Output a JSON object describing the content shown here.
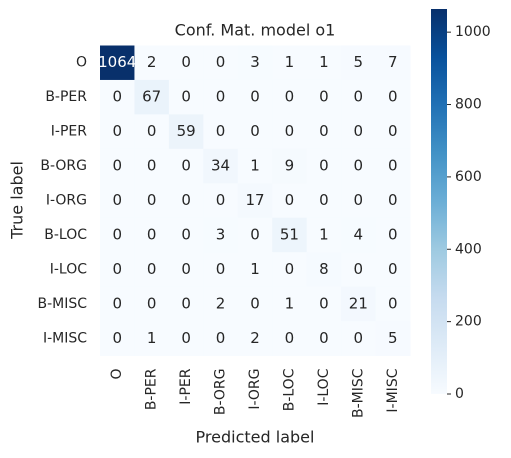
{
  "chart_data": {
    "type": "heatmap",
    "title": "Conf. Mat. model o1",
    "xlabel": "Predicted label",
    "ylabel": "True label",
    "x_categories": [
      "O",
      "B-PER",
      "I-PER",
      "B-ORG",
      "I-ORG",
      "B-LOC",
      "I-LOC",
      "B-MISC",
      "I-MISC"
    ],
    "y_categories": [
      "O",
      "B-PER",
      "I-PER",
      "B-ORG",
      "I-ORG",
      "B-LOC",
      "I-LOC",
      "B-MISC",
      "I-MISC"
    ],
    "values": [
      [
        1064,
        2,
        0,
        0,
        3,
        1,
        1,
        5,
        7
      ],
      [
        0,
        67,
        0,
        0,
        0,
        0,
        0,
        0,
        0
      ],
      [
        0,
        0,
        59,
        0,
        0,
        0,
        0,
        0,
        0
      ],
      [
        0,
        0,
        0,
        34,
        1,
        9,
        0,
        0,
        0
      ],
      [
        0,
        0,
        0,
        0,
        17,
        0,
        0,
        0,
        0
      ],
      [
        0,
        0,
        0,
        3,
        0,
        51,
        1,
        4,
        0
      ],
      [
        0,
        0,
        0,
        0,
        1,
        0,
        8,
        0,
        0
      ],
      [
        0,
        0,
        0,
        2,
        0,
        1,
        0,
        21,
        0
      ],
      [
        0,
        1,
        0,
        0,
        2,
        0,
        0,
        0,
        5
      ]
    ],
    "colormap": [
      "#f7fbff",
      "#deebf7",
      "#c6dbef",
      "#9ecae1",
      "#6baed6",
      "#4292c6",
      "#2171b5",
      "#08519c",
      "#08306b"
    ],
    "clim": [
      0,
      1064
    ],
    "cticks": [
      0,
      200,
      400,
      600,
      800,
      1000
    ]
  }
}
